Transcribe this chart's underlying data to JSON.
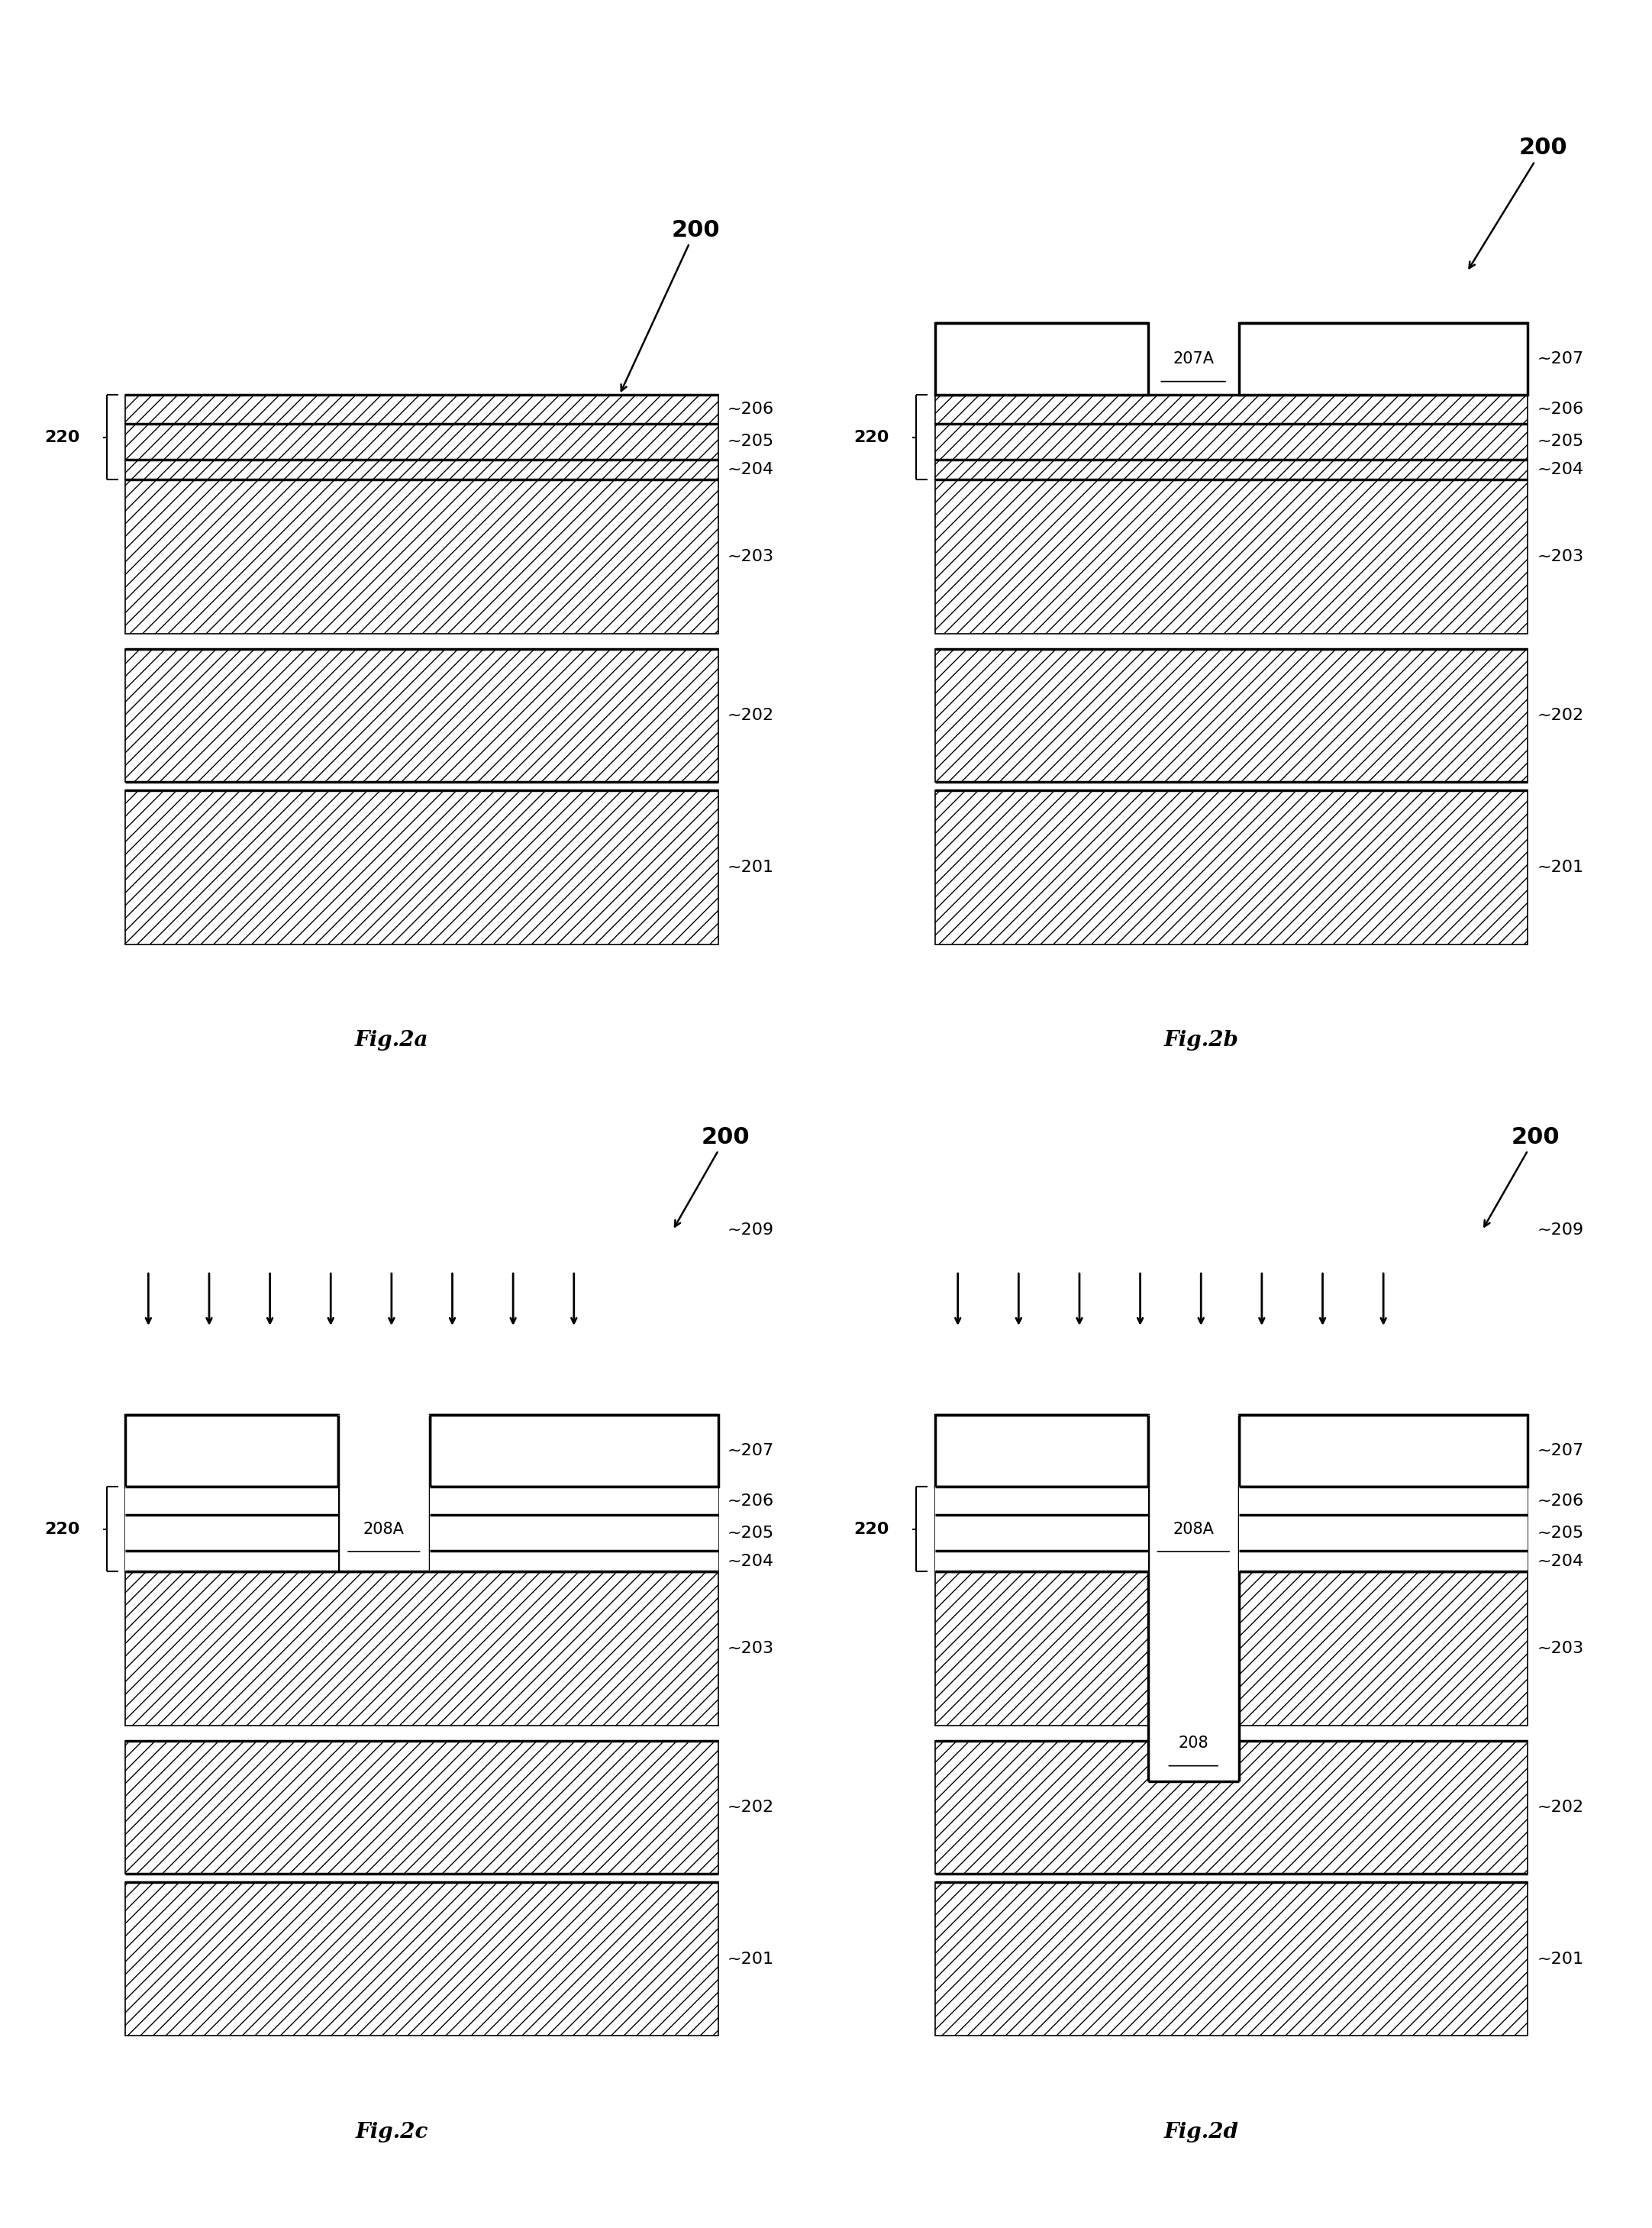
{
  "bg_color": "#ffffff",
  "fig_labels": [
    "Fig.2a",
    "Fig.2b",
    "Fig.2c",
    "Fig.2d"
  ],
  "ref_200": "200",
  "layer_labels": {
    "206": "~206",
    "205": "~205",
    "204": "~204",
    "203": "~203",
    "202": "~202",
    "201": "~201",
    "207": "~207",
    "207A": "207A",
    "208A": "208A",
    "208": "208",
    "209": "~209",
    "220": "220"
  },
  "font_size_label": 16,
  "font_size_fig": 20,
  "font_size_ref": 20,
  "lw_thick": 2.5,
  "lw_thin": 1.5
}
